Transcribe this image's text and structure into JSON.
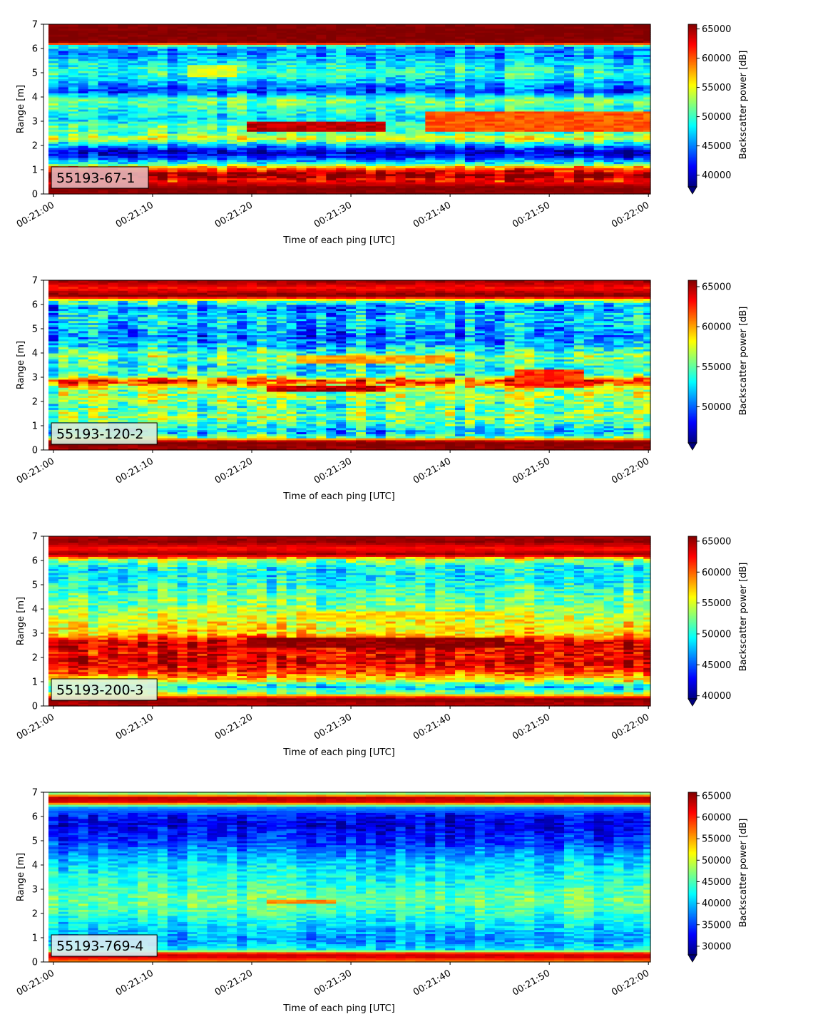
{
  "chart_data": [
    {
      "type": "heatmap",
      "label_box": {
        "text": "55193-67-1",
        "bg": "#e4b1b4"
      },
      "xlabel": "Time of each ping [UTC]",
      "ylabel": "Range [m]",
      "x_ticks": [
        "00:21:00",
        "00:21:10",
        "00:21:20",
        "00:21:30",
        "00:21:40",
        "00:21:50",
        "00:22:00"
      ],
      "x_range_seconds": [
        -1,
        60.2
      ],
      "ylim": [
        0,
        7
      ],
      "y_ticks": [
        "0",
        "1",
        "2",
        "3",
        "4",
        "5",
        "6",
        "7"
      ],
      "colorbar": {
        "label": "Backscatter power [dB]",
        "vmin": 38000,
        "vmax": 65800,
        "ticks": [
          "40000",
          "45000",
          "50000",
          "55000",
          "60000",
          "65000"
        ],
        "tick_values": [
          40000,
          45000,
          50000,
          55000,
          60000,
          65000
        ],
        "extend": "min"
      },
      "colormap": "jet",
      "time_columns": 61,
      "range_profile": [
        {
          "range": 0.0,
          "value": 65000
        },
        {
          "range": 0.25,
          "value": 66000
        },
        {
          "range": 0.55,
          "value": 62000
        },
        {
          "range": 0.8,
          "value": 66000
        },
        {
          "range": 1.1,
          "value": 59000
        },
        {
          "range": 1.25,
          "value": 50000
        },
        {
          "range": 1.5,
          "value": 43000
        },
        {
          "range": 1.75,
          "value": 39500
        },
        {
          "range": 2.05,
          "value": 47000
        },
        {
          "range": 2.3,
          "value": 55000
        },
        {
          "range": 2.55,
          "value": 50500
        },
        {
          "range": 2.8,
          "value": 51500
        },
        {
          "range": 3.1,
          "value": 47500
        },
        {
          "range": 3.5,
          "value": 49500
        },
        {
          "range": 3.9,
          "value": 52000
        },
        {
          "range": 4.25,
          "value": 43000
        },
        {
          "range": 4.6,
          "value": 46500
        },
        {
          "range": 5.0,
          "value": 50000
        },
        {
          "range": 5.4,
          "value": 48000
        },
        {
          "range": 5.8,
          "value": 45000
        },
        {
          "range": 6.1,
          "value": 47000
        },
        {
          "range": 6.25,
          "value": 65500
        },
        {
          "range": 6.7,
          "value": 66000
        },
        {
          "range": 7.0,
          "value": 65500
        }
      ],
      "features": [
        {
          "t0": 20,
          "t1": 33,
          "r0": 2.55,
          "r1": 3.0,
          "value": 64000
        },
        {
          "t0": 38,
          "t1": 60,
          "r0": 2.6,
          "r1": 3.4,
          "value": 60000
        },
        {
          "t0": 14,
          "t1": 18,
          "r0": 4.8,
          "r1": 5.3,
          "value": 54500
        }
      ]
    },
    {
      "type": "heatmap",
      "label_box": {
        "text": "55193-120-2",
        "bg": "#d6ecd9"
      },
      "xlabel": "Time of each ping [UTC]",
      "ylabel": "Range [m]",
      "x_ticks": [
        "00:21:00",
        "00:21:10",
        "00:21:20",
        "00:21:30",
        "00:21:40",
        "00:21:50",
        "00:22:00"
      ],
      "x_range_seconds": [
        -1,
        60.2
      ],
      "ylim": [
        0,
        7
      ],
      "y_ticks": [
        "0",
        "1",
        "2",
        "3",
        "4",
        "5",
        "6",
        "7"
      ],
      "colorbar": {
        "label": "Backscatter power [dB]",
        "vmin": 45500,
        "vmax": 65800,
        "ticks": [
          "50000",
          "55000",
          "60000",
          "65000"
        ],
        "tick_values": [
          50000,
          55000,
          60000,
          65000
        ],
        "extend": "min"
      },
      "colormap": "jet",
      "time_columns": 61,
      "range_profile": [
        {
          "range": 0.0,
          "value": 65000
        },
        {
          "range": 0.35,
          "value": 66000
        },
        {
          "range": 0.55,
          "value": 55000
        },
        {
          "range": 0.75,
          "value": 51500
        },
        {
          "range": 1.0,
          "value": 54000
        },
        {
          "range": 1.4,
          "value": 56000
        },
        {
          "range": 1.8,
          "value": 54500
        },
        {
          "range": 2.2,
          "value": 56500
        },
        {
          "range": 2.5,
          "value": 55500
        },
        {
          "range": 2.85,
          "value": 63000
        },
        {
          "range": 3.1,
          "value": 54000
        },
        {
          "range": 3.5,
          "value": 53500
        },
        {
          "range": 3.9,
          "value": 55500
        },
        {
          "range": 4.3,
          "value": 52000
        },
        {
          "range": 4.7,
          "value": 50500
        },
        {
          "range": 5.1,
          "value": 51500
        },
        {
          "range": 5.5,
          "value": 52500
        },
        {
          "range": 5.9,
          "value": 50500
        },
        {
          "range": 6.15,
          "value": 55000
        },
        {
          "range": 6.35,
          "value": 66000
        },
        {
          "range": 6.7,
          "value": 63000
        },
        {
          "range": 7.0,
          "value": 65500
        }
      ],
      "features": [
        {
          "t0": 22,
          "t1": 33,
          "r0": 2.4,
          "r1": 2.7,
          "value": 64500
        },
        {
          "t0": 47,
          "t1": 53,
          "r0": 2.6,
          "r1": 3.3,
          "value": 62500
        },
        {
          "t0": 25,
          "t1": 40,
          "r0": 3.6,
          "r1": 3.95,
          "value": 60000
        }
      ]
    },
    {
      "type": "heatmap",
      "label_box": {
        "text": "55193-200-3",
        "bg": "#e2f3d7"
      },
      "xlabel": "Time of each ping [UTC]",
      "ylabel": "Range [m]",
      "x_ticks": [
        "00:21:00",
        "00:21:10",
        "00:21:20",
        "00:21:30",
        "00:21:40",
        "00:21:50",
        "00:22:00"
      ],
      "x_range_seconds": [
        -1,
        60.2
      ],
      "ylim": [
        0,
        7
      ],
      "y_ticks": [
        "0",
        "1",
        "2",
        "3",
        "4",
        "5",
        "6",
        "7"
      ],
      "colorbar": {
        "label": "Backscatter power [dB]",
        "vmin": 39500,
        "vmax": 65800,
        "ticks": [
          "40000",
          "45000",
          "50000",
          "55000",
          "60000",
          "65000"
        ],
        "tick_values": [
          40000,
          45000,
          50000,
          55000,
          60000,
          65000
        ],
        "extend": "min"
      },
      "colormap": "jet",
      "time_columns": 61,
      "range_profile": [
        {
          "range": 0.0,
          "value": 64000
        },
        {
          "range": 0.3,
          "value": 65500
        },
        {
          "range": 0.55,
          "value": 53000
        },
        {
          "range": 0.8,
          "value": 48000
        },
        {
          "range": 1.05,
          "value": 55500
        },
        {
          "range": 1.4,
          "value": 61000
        },
        {
          "range": 1.8,
          "value": 63500
        },
        {
          "range": 2.2,
          "value": 62500
        },
        {
          "range": 2.6,
          "value": 64000
        },
        {
          "range": 3.0,
          "value": 57000
        },
        {
          "range": 3.4,
          "value": 55500
        },
        {
          "range": 3.8,
          "value": 54000
        },
        {
          "range": 4.2,
          "value": 52500
        },
        {
          "range": 4.6,
          "value": 51500
        },
        {
          "range": 5.0,
          "value": 50500
        },
        {
          "range": 5.4,
          "value": 49000
        },
        {
          "range": 5.8,
          "value": 50000
        },
        {
          "range": 6.05,
          "value": 54000
        },
        {
          "range": 6.25,
          "value": 65500
        },
        {
          "range": 6.5,
          "value": 62000
        },
        {
          "range": 6.8,
          "value": 65500
        },
        {
          "range": 7.0,
          "value": 64500
        }
      ],
      "features": [
        {
          "t0": 20,
          "t1": 45,
          "r0": 2.4,
          "r1": 2.8,
          "value": 65500
        },
        {
          "t0": 25,
          "t1": 45,
          "r0": 3.6,
          "r1": 3.9,
          "value": 57000
        }
      ]
    },
    {
      "type": "heatmap",
      "label_box": {
        "text": "55193-769-4",
        "bg": "#d6edf2"
      },
      "xlabel": "Time of each ping [UTC]",
      "ylabel": "Range [m]",
      "x_ticks": [
        "00:21:00",
        "00:21:10",
        "00:21:20",
        "00:21:30",
        "00:21:40",
        "00:21:50",
        "00:22:00"
      ],
      "x_range_seconds": [
        -1,
        60.2
      ],
      "ylim": [
        0,
        7
      ],
      "y_ticks": [
        "0",
        "1",
        "2",
        "3",
        "4",
        "5",
        "6",
        "7"
      ],
      "colorbar": {
        "label": "Backscatter power [dB]",
        "vmin": 28000,
        "vmax": 65800,
        "ticks": [
          "30000",
          "35000",
          "40000",
          "45000",
          "50000",
          "55000",
          "60000",
          "65000"
        ],
        "tick_values": [
          30000,
          35000,
          40000,
          45000,
          50000,
          55000,
          60000,
          65000
        ],
        "extend": "min"
      },
      "colormap": "jet",
      "time_columns": 61,
      "range_profile": [
        {
          "range": 0.0,
          "value": 55000
        },
        {
          "range": 0.2,
          "value": 62000
        },
        {
          "range": 0.35,
          "value": 63000
        },
        {
          "range": 0.5,
          "value": 42000
        },
        {
          "range": 0.9,
          "value": 38000
        },
        {
          "range": 1.3,
          "value": 40000
        },
        {
          "range": 1.7,
          "value": 42000
        },
        {
          "range": 2.1,
          "value": 44500
        },
        {
          "range": 2.5,
          "value": 46000
        },
        {
          "range": 2.9,
          "value": 45000
        },
        {
          "range": 3.3,
          "value": 43500
        },
        {
          "range": 3.7,
          "value": 42000
        },
        {
          "range": 4.1,
          "value": 40500
        },
        {
          "range": 4.5,
          "value": 38000
        },
        {
          "range": 4.9,
          "value": 35000
        },
        {
          "range": 5.3,
          "value": 33000
        },
        {
          "range": 5.7,
          "value": 31500
        },
        {
          "range": 6.1,
          "value": 33500
        },
        {
          "range": 6.4,
          "value": 39000
        },
        {
          "range": 6.6,
          "value": 62000
        },
        {
          "range": 6.8,
          "value": 63500
        },
        {
          "range": 7.0,
          "value": 43000
        }
      ],
      "features": [
        {
          "t0": 22,
          "t1": 28,
          "r0": 2.4,
          "r1": 2.6,
          "value": 56000
        }
      ]
    }
  ]
}
